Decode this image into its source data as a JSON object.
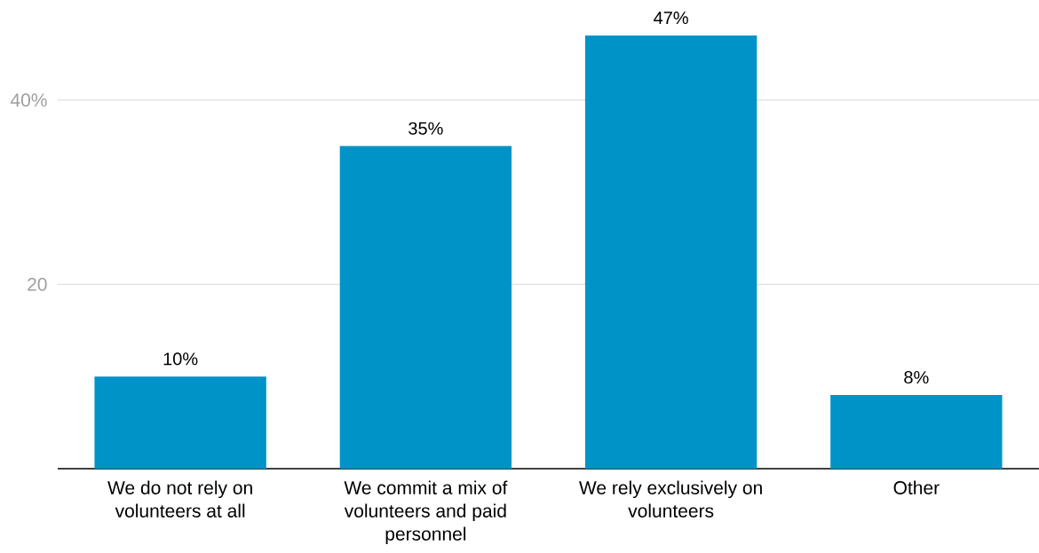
{
  "chart_data": {
    "type": "bar",
    "categories": [
      "We do not rely on volunteers at all",
      "We commit a mix of volunteers and paid personnel",
      "We rely exclusively on volunteers",
      "Other"
    ],
    "values": [
      10,
      35,
      47,
      8
    ],
    "color": "#0093c8",
    "value_labels": [
      "10%",
      "35%",
      "47%",
      "8%"
    ],
    "ylim": [
      0,
      47
    ],
    "yticks": [
      20,
      {
        "value": 40,
        "label": "40%"
      }
    ],
    "grid": "y"
  }
}
